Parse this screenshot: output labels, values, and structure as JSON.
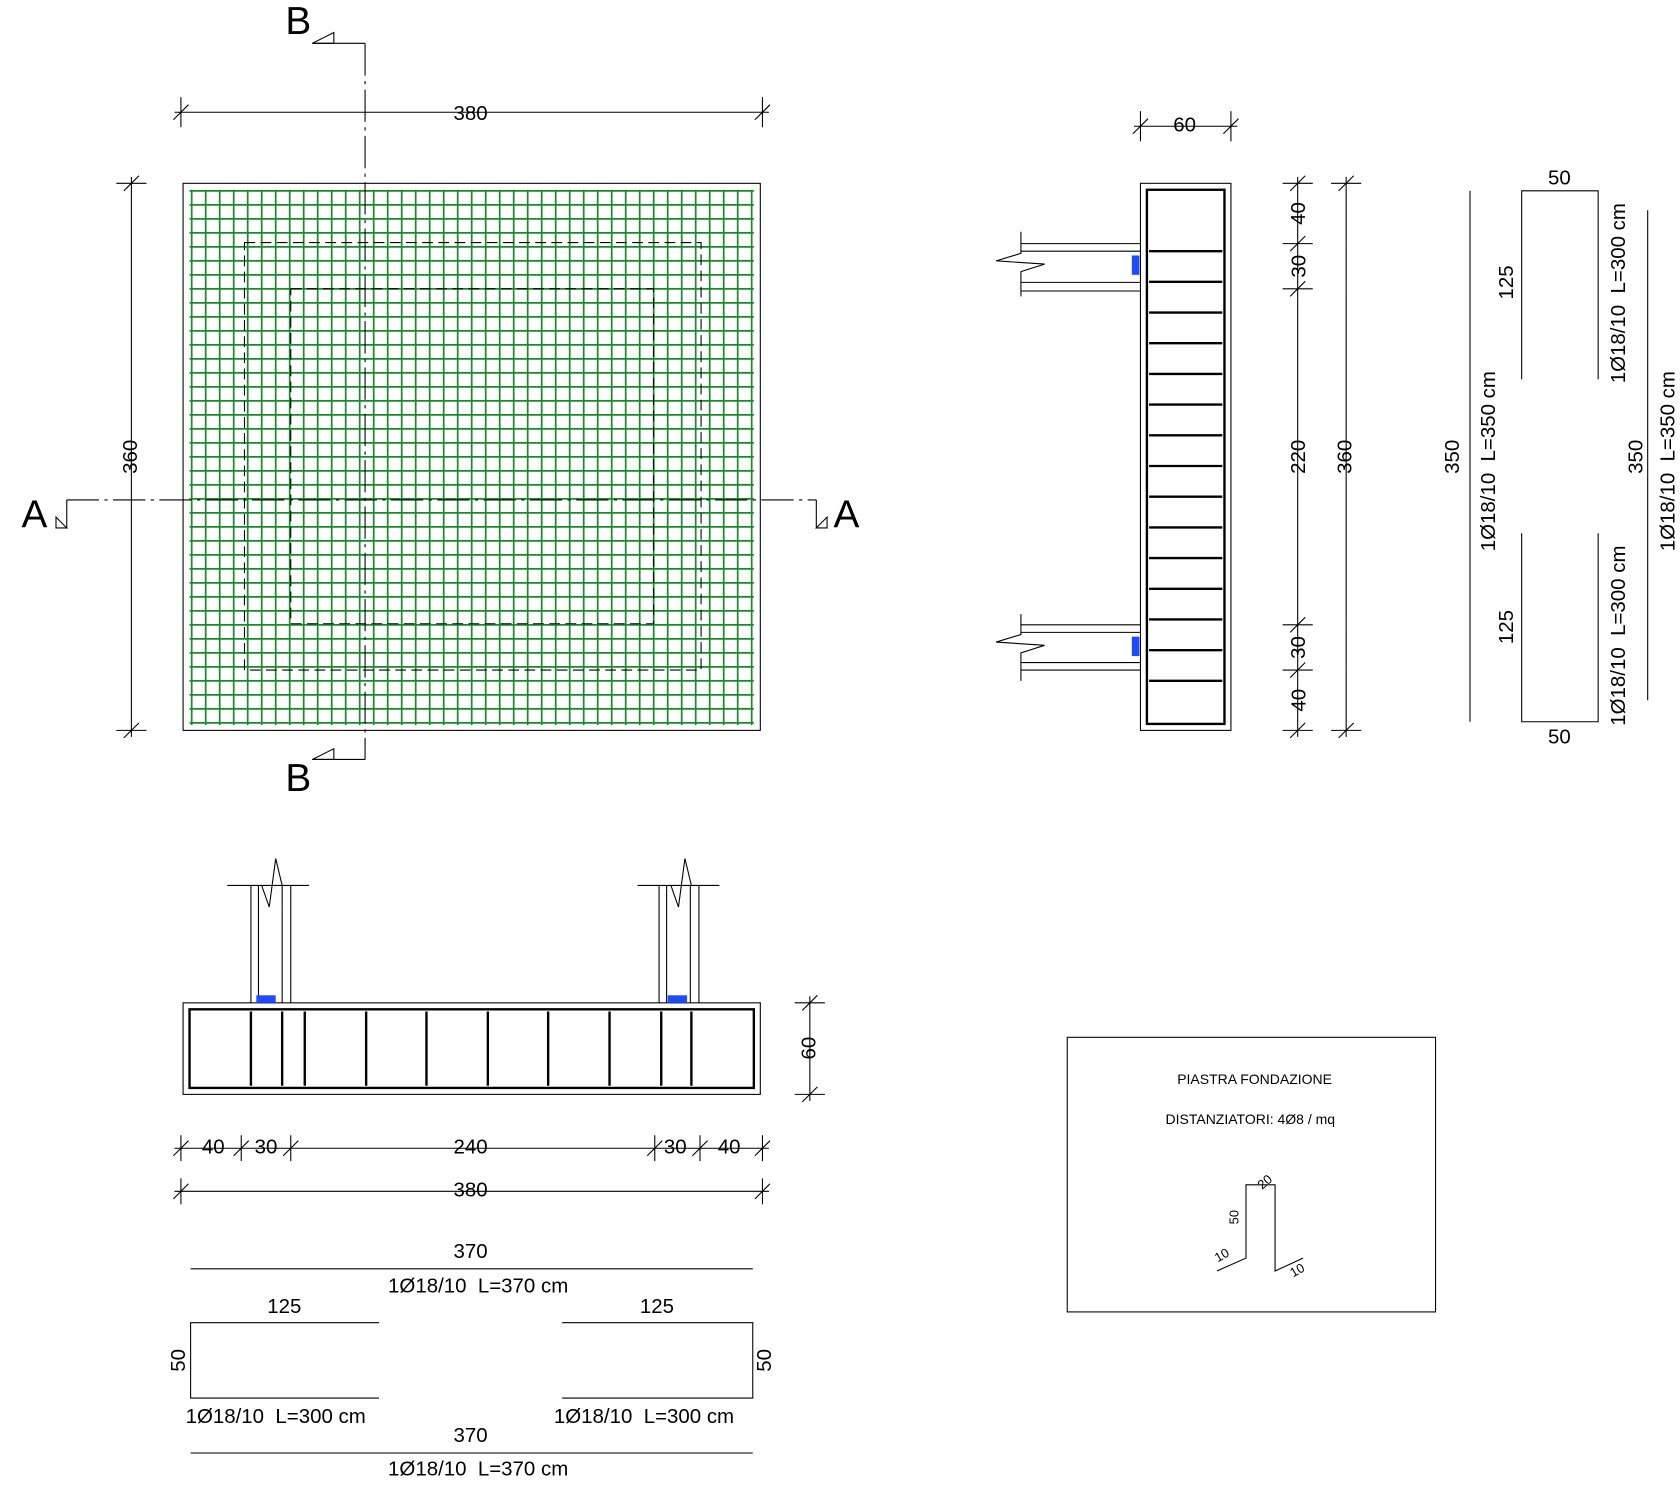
{
  "plan": {
    "section_b_top": "B",
    "section_b_bottom": "B",
    "section_a_left": "A",
    "section_a_right": "A",
    "width": 380,
    "height": 360
  },
  "section_b": {
    "width": 60,
    "dims": [
      40,
      30,
      220,
      30,
      40
    ],
    "total": 360
  },
  "section_b_bars": {
    "top": {
      "width": 50,
      "leg": 125,
      "label": "1Ø18/10  L=300 cm"
    },
    "straight_left": {
      "length": 350,
      "label": "1Ø18/10  L=350 cm"
    },
    "bottom": {
      "width": 50,
      "leg": 125,
      "label": "1Ø18/10  L=300 cm"
    },
    "straight_right": {
      "length": 350,
      "label": "1Ø18/10  L=350 cm"
    }
  },
  "section_a": {
    "height": 60,
    "dims": [
      40,
      30,
      240,
      30,
      40
    ],
    "total": 380
  },
  "section_a_bars": {
    "top": {
      "length": 370,
      "label": "1Ø18/10  L=370 cm"
    },
    "left": {
      "leg": 125,
      "height": 50,
      "label": "1Ø18/10  L=300 cm"
    },
    "right": {
      "leg": 125,
      "height": 50,
      "label": "1Ø18/10  L=300 cm"
    },
    "bottom": {
      "length": 370,
      "label": "1Ø18/10  L=370 cm"
    }
  },
  "title_block": {
    "title": "PIASTRA FONDAZIONE",
    "spacers": "DISTANZIATORI: 4Ø8 / mq",
    "spacer_dims": [
      20,
      50,
      10,
      10
    ]
  }
}
